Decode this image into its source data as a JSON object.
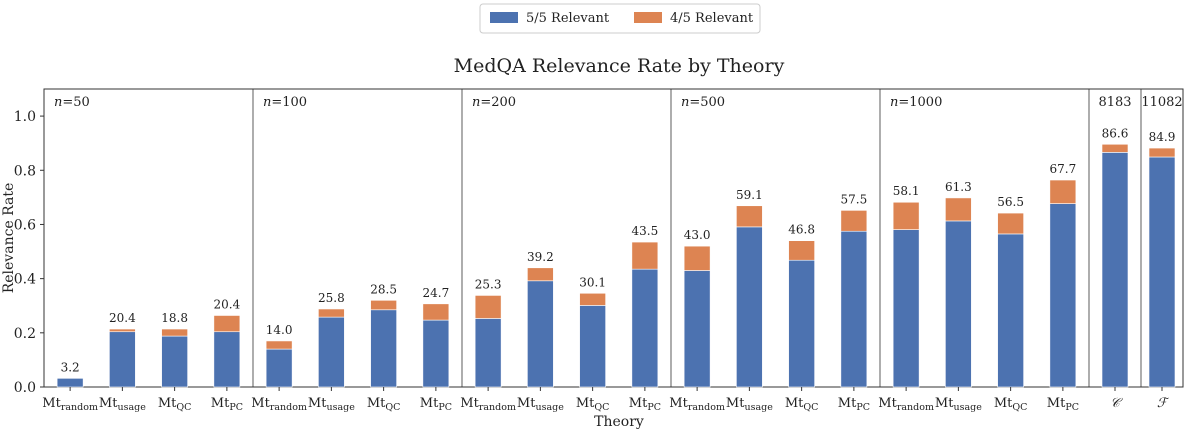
{
  "chart_data": {
    "type": "bar",
    "stacked": true,
    "title": "MedQA Relevance Rate by Theory",
    "xlabel": "Theory",
    "ylabel": "Relevance Rate",
    "ylim": [
      0,
      1.1
    ],
    "yticks": [
      "0.0",
      "0.2",
      "0.4",
      "0.6",
      "0.8",
      "1.0"
    ],
    "ytick_values": [
      0,
      0.2,
      0.4,
      0.6,
      0.8,
      1.0
    ],
    "legend": [
      {
        "name": "5/5 Relevant",
        "color": "#4c72b0"
      },
      {
        "name": "4/5 Relevant",
        "color": "#dd8452"
      }
    ],
    "groups": [
      {
        "label": "n=50",
        "n_prefix": "n",
        "n_value": "=50"
      },
      {
        "label": "n=100",
        "n_prefix": "n",
        "n_value": "=100"
      },
      {
        "label": "n=200",
        "n_prefix": "n",
        "n_value": "=200"
      },
      {
        "label": "n=500",
        "n_prefix": "n",
        "n_value": "=500"
      },
      {
        "label": "n=1000",
        "n_prefix": "n",
        "n_value": "=1000"
      },
      {
        "label": "8183",
        "n_prefix": "",
        "n_value": "8183"
      },
      {
        "label": "11082",
        "n_prefix": "",
        "n_value": "11082"
      }
    ],
    "categories": [
      {
        "base": "Mt",
        "sub": "random",
        "group": 0,
        "five": 0.032,
        "four": 0.0,
        "label": "3.2"
      },
      {
        "base": "Mt",
        "sub": "usage",
        "group": 0,
        "five": 0.204,
        "four": 0.01,
        "label": "20.4"
      },
      {
        "base": "Mt",
        "sub": "QC",
        "group": 0,
        "five": 0.188,
        "four": 0.026,
        "label": "18.8"
      },
      {
        "base": "Mt",
        "sub": "PC",
        "group": 0,
        "five": 0.204,
        "four": 0.06,
        "label": "20.4"
      },
      {
        "base": "Mt",
        "sub": "random",
        "group": 1,
        "five": 0.14,
        "four": 0.03,
        "label": "14.0"
      },
      {
        "base": "Mt",
        "sub": "usage",
        "group": 1,
        "five": 0.258,
        "four": 0.03,
        "label": "25.8"
      },
      {
        "base": "Mt",
        "sub": "QC",
        "group": 1,
        "five": 0.285,
        "four": 0.035,
        "label": "28.5"
      },
      {
        "base": "Mt",
        "sub": "PC",
        "group": 1,
        "five": 0.247,
        "four": 0.06,
        "label": "24.7"
      },
      {
        "base": "Mt",
        "sub": "random",
        "group": 2,
        "five": 0.253,
        "four": 0.085,
        "label": "25.3"
      },
      {
        "base": "Mt",
        "sub": "usage",
        "group": 2,
        "five": 0.392,
        "four": 0.048,
        "label": "39.2"
      },
      {
        "base": "Mt",
        "sub": "QC",
        "group": 2,
        "five": 0.301,
        "four": 0.045,
        "label": "30.1"
      },
      {
        "base": "Mt",
        "sub": "PC",
        "group": 2,
        "five": 0.435,
        "four": 0.1,
        "label": "43.5"
      },
      {
        "base": "Mt",
        "sub": "random",
        "group": 3,
        "five": 0.43,
        "four": 0.09,
        "label": "43.0"
      },
      {
        "base": "Mt",
        "sub": "usage",
        "group": 3,
        "five": 0.591,
        "four": 0.078,
        "label": "59.1"
      },
      {
        "base": "Mt",
        "sub": "QC",
        "group": 3,
        "five": 0.468,
        "four": 0.072,
        "label": "46.8"
      },
      {
        "base": "Mt",
        "sub": "PC",
        "group": 3,
        "five": 0.575,
        "four": 0.077,
        "label": "57.5"
      },
      {
        "base": "Mt",
        "sub": "random",
        "group": 4,
        "five": 0.581,
        "four": 0.101,
        "label": "58.1"
      },
      {
        "base": "Mt",
        "sub": "usage",
        "group": 4,
        "five": 0.613,
        "four": 0.085,
        "label": "61.3"
      },
      {
        "base": "Mt",
        "sub": "QC",
        "group": 4,
        "five": 0.565,
        "four": 0.077,
        "label": "56.5"
      },
      {
        "base": "Mt",
        "sub": "PC",
        "group": 4,
        "five": 0.677,
        "four": 0.087,
        "label": "67.7"
      },
      {
        "base": "𝒞",
        "sub": "",
        "group": 5,
        "five": 0.866,
        "four": 0.03,
        "label": "86.6"
      },
      {
        "base": "ℱ",
        "sub": "",
        "group": 6,
        "five": 0.849,
        "four": 0.033,
        "label": "84.9"
      }
    ]
  }
}
